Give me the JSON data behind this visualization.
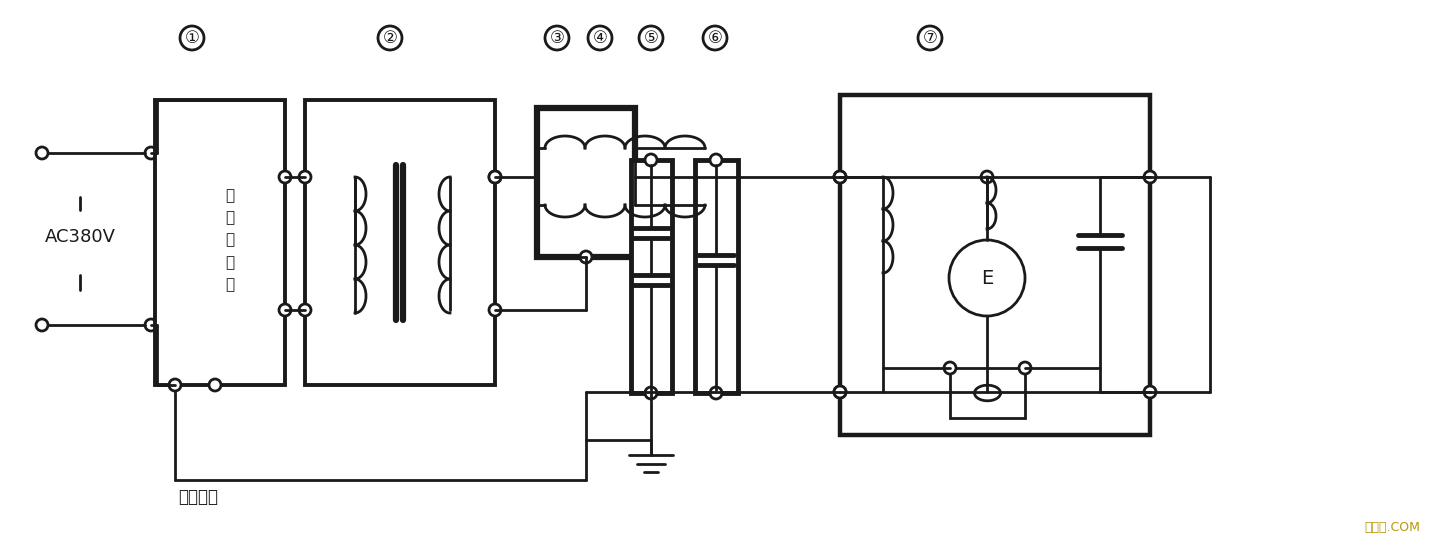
{
  "bg_color": "#ffffff",
  "line_color": "#1a1a1a",
  "lw": 2.0,
  "watermark_text": "接线图.COM",
  "watermark_color": "#b8960a",
  "labels": {
    "ac": "AC380V",
    "box1_text": "变\n频\n源\n输\n出",
    "measure": "测量输入",
    "E_label": "E",
    "nums": [
      "①",
      "②",
      "③",
      "④",
      "⑤",
      "⑥",
      "⑦"
    ]
  }
}
